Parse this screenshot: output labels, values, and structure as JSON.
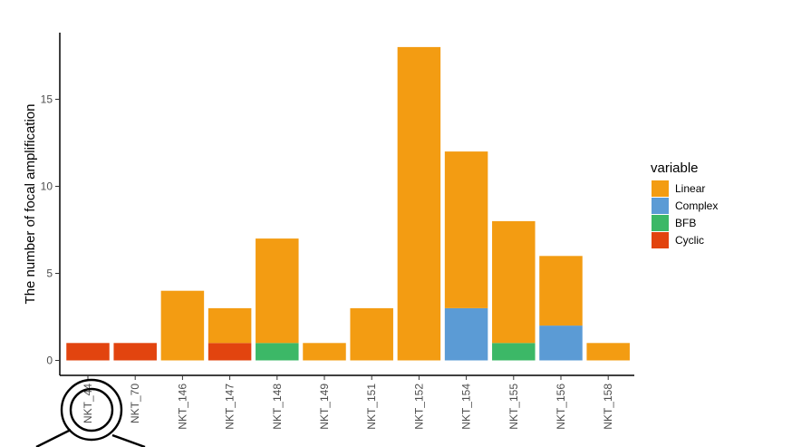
{
  "chart_data": {
    "type": "bar",
    "stacked": true,
    "title": "",
    "xlabel": "",
    "ylabel": "The number of focal amplification",
    "ylim": [
      0,
      19
    ],
    "yticks": [
      0,
      5,
      10,
      15
    ],
    "grid": false,
    "legend_title": "variable",
    "legend_position": "right",
    "categories": [
      "NKT_44",
      "NKT_70",
      "NKT_146",
      "NKT_147",
      "NKT_148",
      "NKT_149",
      "NKT_151",
      "NKT_152",
      "NKT_154",
      "NKT_155",
      "NKT_156",
      "NKT_158"
    ],
    "series": [
      {
        "name": "Linear",
        "color": "#F39C12",
        "values": [
          0,
          0,
          4,
          2,
          6,
          1,
          3,
          18,
          9,
          7,
          4,
          1
        ]
      },
      {
        "name": "Complex",
        "color": "#5B9BD5",
        "values": [
          0,
          0,
          0,
          0,
          0,
          0,
          0,
          0,
          3,
          0,
          2,
          0
        ]
      },
      {
        "name": "BFB",
        "color": "#3CB867",
        "values": [
          0,
          0,
          0,
          0,
          1,
          0,
          0,
          0,
          0,
          1,
          0,
          0
        ]
      },
      {
        "name": "Cyclic",
        "color": "#E2440F",
        "values": [
          1,
          1,
          0,
          1,
          0,
          0,
          0,
          0,
          0,
          0,
          0,
          0
        ]
      }
    ]
  },
  "overlay": {
    "icon": "magnifier-icon"
  }
}
